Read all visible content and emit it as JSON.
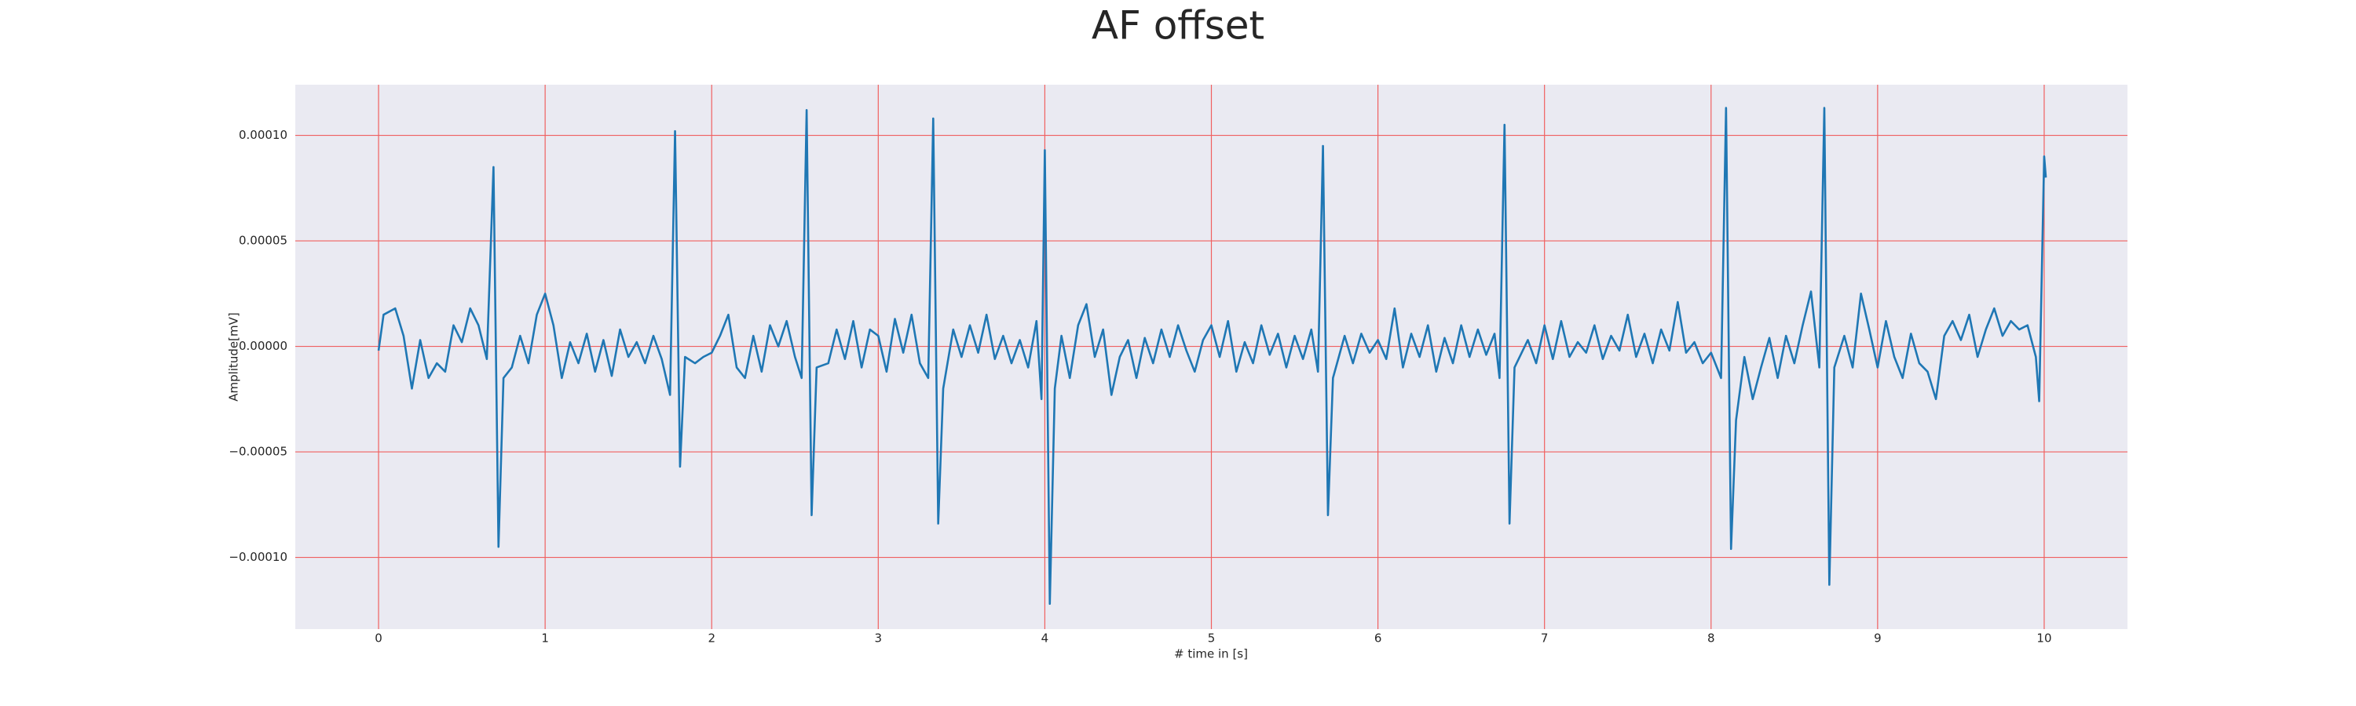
{
  "chart_data": {
    "type": "line",
    "title": "AF offset",
    "x_label": "# time in [s]",
    "y_label": "Amplitude[mV]",
    "xlim": [
      -0.5,
      10.5
    ],
    "ylim": [
      -0.000134,
      0.000124
    ],
    "xticks": [
      0,
      1,
      2,
      3,
      4,
      5,
      6,
      7,
      8,
      9,
      10
    ],
    "yticks": [
      {
        "value": -0.0001,
        "label": "−0.00010"
      },
      {
        "value": -5e-05,
        "label": "−0.00005"
      },
      {
        "value": 0,
        "label": "0.00000"
      },
      {
        "value": 5e-05,
        "label": "0.00005"
      },
      {
        "value": 0.0001,
        "label": "0.00010"
      }
    ],
    "grid": true,
    "grid_color": "#f06060",
    "background": "#eaeaf2",
    "x": [
      0.0,
      0.03,
      0.1,
      0.15,
      0.2,
      0.25,
      0.3,
      0.35,
      0.4,
      0.45,
      0.5,
      0.55,
      0.6,
      0.65,
      0.69,
      0.72,
      0.75,
      0.8,
      0.85,
      0.9,
      0.95,
      1.0,
      1.05,
      1.1,
      1.15,
      1.2,
      1.25,
      1.3,
      1.35,
      1.4,
      1.45,
      1.5,
      1.55,
      1.6,
      1.65,
      1.7,
      1.75,
      1.78,
      1.81,
      1.84,
      1.9,
      1.95,
      2.0,
      2.05,
      2.1,
      2.15,
      2.2,
      2.25,
      2.3,
      2.35,
      2.4,
      2.45,
      2.5,
      2.54,
      2.57,
      2.6,
      2.63,
      2.7,
      2.75,
      2.8,
      2.85,
      2.9,
      2.95,
      3.0,
      3.05,
      3.1,
      3.15,
      3.2,
      3.25,
      3.3,
      3.33,
      3.36,
      3.39,
      3.45,
      3.5,
      3.55,
      3.6,
      3.65,
      3.7,
      3.75,
      3.8,
      3.85,
      3.9,
      3.95,
      3.98,
      4.0,
      4.03,
      4.06,
      4.1,
      4.15,
      4.2,
      4.25,
      4.3,
      4.35,
      4.4,
      4.45,
      4.5,
      4.55,
      4.6,
      4.65,
      4.7,
      4.75,
      4.8,
      4.85,
      4.9,
      4.95,
      5.0,
      5.05,
      5.1,
      5.15,
      5.2,
      5.25,
      5.3,
      5.35,
      5.4,
      5.45,
      5.5,
      5.55,
      5.6,
      5.64,
      5.67,
      5.7,
      5.73,
      5.8,
      5.85,
      5.9,
      5.95,
      6.0,
      6.05,
      6.1,
      6.15,
      6.2,
      6.25,
      6.3,
      6.35,
      6.4,
      6.45,
      6.5,
      6.55,
      6.6,
      6.65,
      6.7,
      6.73,
      6.76,
      6.79,
      6.82,
      6.9,
      6.95,
      7.0,
      7.05,
      7.1,
      7.15,
      7.2,
      7.25,
      7.3,
      7.35,
      7.4,
      7.45,
      7.5,
      7.55,
      7.6,
      7.65,
      7.7,
      7.75,
      7.8,
      7.85,
      7.9,
      7.95,
      8.0,
      8.06,
      8.09,
      8.12,
      8.15,
      8.2,
      8.25,
      8.3,
      8.35,
      8.4,
      8.45,
      8.5,
      8.55,
      8.6,
      8.65,
      8.68,
      8.71,
      8.74,
      8.8,
      8.85,
      8.9,
      8.95,
      9.0,
      9.05,
      9.1,
      9.15,
      9.2,
      9.25,
      9.3,
      9.35,
      9.4,
      9.45,
      9.5,
      9.55,
      9.6,
      9.65,
      9.7,
      9.75,
      9.8,
      9.85,
      9.9,
      9.95,
      9.97,
      10.0,
      10.01
    ],
    "series": [
      {
        "name": "AF offset",
        "color": "#1f77b4",
        "values": [
          -2e-06,
          1.5e-05,
          1.8e-05,
          5e-06,
          -2e-05,
          3e-06,
          -1.5e-05,
          -8e-06,
          -1.2e-05,
          1e-05,
          2e-06,
          1.8e-05,
          1e-05,
          -6e-06,
          8.5e-05,
          -9.5e-05,
          -1.5e-05,
          -1e-05,
          5e-06,
          -8e-06,
          1.5e-05,
          2.5e-05,
          1e-05,
          -1.5e-05,
          2e-06,
          -8e-06,
          6e-06,
          -1.2e-05,
          3e-06,
          -1.4e-05,
          8e-06,
          -5e-06,
          2e-06,
          -8e-06,
          5e-06,
          -6e-06,
          -2.3e-05,
          0.000102,
          -5.7e-05,
          -5e-06,
          -8e-06,
          -5e-06,
          -3e-06,
          5e-06,
          1.5e-05,
          -1e-05,
          -1.5e-05,
          5e-06,
          -1.2e-05,
          1e-05,
          0,
          1.2e-05,
          -5e-06,
          -1.5e-05,
          0.000112,
          -8e-05,
          -1e-05,
          -8e-06,
          8e-06,
          -6e-06,
          1.2e-05,
          -1e-05,
          8e-06,
          5e-06,
          -1.2e-05,
          1.3e-05,
          -3e-06,
          1.5e-05,
          -8e-06,
          -1.5e-05,
          0.000108,
          -8.4e-05,
          -2e-05,
          8e-06,
          -5e-06,
          1e-05,
          -3e-06,
          1.5e-05,
          -6e-06,
          5e-06,
          -8e-06,
          3e-06,
          -1e-05,
          1.2e-05,
          -2.5e-05,
          9.3e-05,
          -0.000122,
          -2e-05,
          5e-06,
          -1.5e-05,
          1e-05,
          2e-05,
          -5e-06,
          8e-06,
          -2.3e-05,
          -5e-06,
          3e-06,
          -1.5e-05,
          4e-06,
          -8e-06,
          8e-06,
          -5e-06,
          1e-05,
          -2e-06,
          -1.2e-05,
          3e-06,
          1e-05,
          -5e-06,
          1.2e-05,
          -1.2e-05,
          2e-06,
          -8e-06,
          1e-05,
          -4e-06,
          6e-06,
          -1e-05,
          5e-06,
          -6e-06,
          8e-06,
          -1.2e-05,
          9.5e-05,
          -8e-05,
          -1.5e-05,
          5e-06,
          -8e-06,
          6e-06,
          -3e-06,
          3e-06,
          -6e-06,
          1.8e-05,
          -1e-05,
          6e-06,
          -5e-06,
          1e-05,
          -1.2e-05,
          4e-06,
          -8e-06,
          1e-05,
          -5e-06,
          8e-06,
          -4e-06,
          6e-06,
          -1.5e-05,
          0.000105,
          -8.4e-05,
          -1e-05,
          3e-06,
          -8e-06,
          1e-05,
          -6e-06,
          1.2e-05,
          -5e-06,
          2e-06,
          -3e-06,
          1e-05,
          -6e-06,
          5e-06,
          -2e-06,
          1.5e-05,
          -5e-06,
          6e-06,
          -8e-06,
          8e-06,
          -2e-06,
          2.1e-05,
          -3e-06,
          2e-06,
          -8e-06,
          -3e-06,
          -1.5e-05,
          0.000113,
          -9.6e-05,
          -3.5e-05,
          -5e-06,
          -2.5e-05,
          -1e-05,
          4e-06,
          -1.5e-05,
          5e-06,
          -8e-06,
          1e-05,
          2.6e-05,
          -1e-05,
          0.000113,
          -0.000113,
          -1e-05,
          5e-06,
          -1e-05,
          2.5e-05,
          8e-06,
          -1e-05,
          1.2e-05,
          -5e-06,
          -1.5e-05,
          6e-06,
          -8e-06,
          -1.2e-05,
          -2.5e-05,
          5e-06,
          1.2e-05,
          3e-06,
          1.5e-05,
          -5e-06,
          8e-06,
          1.8e-05,
          5e-06,
          1.2e-05,
          8e-06,
          1e-05,
          -5e-06,
          -2.6e-05,
          9e-05,
          8e-05
        ]
      }
    ]
  }
}
